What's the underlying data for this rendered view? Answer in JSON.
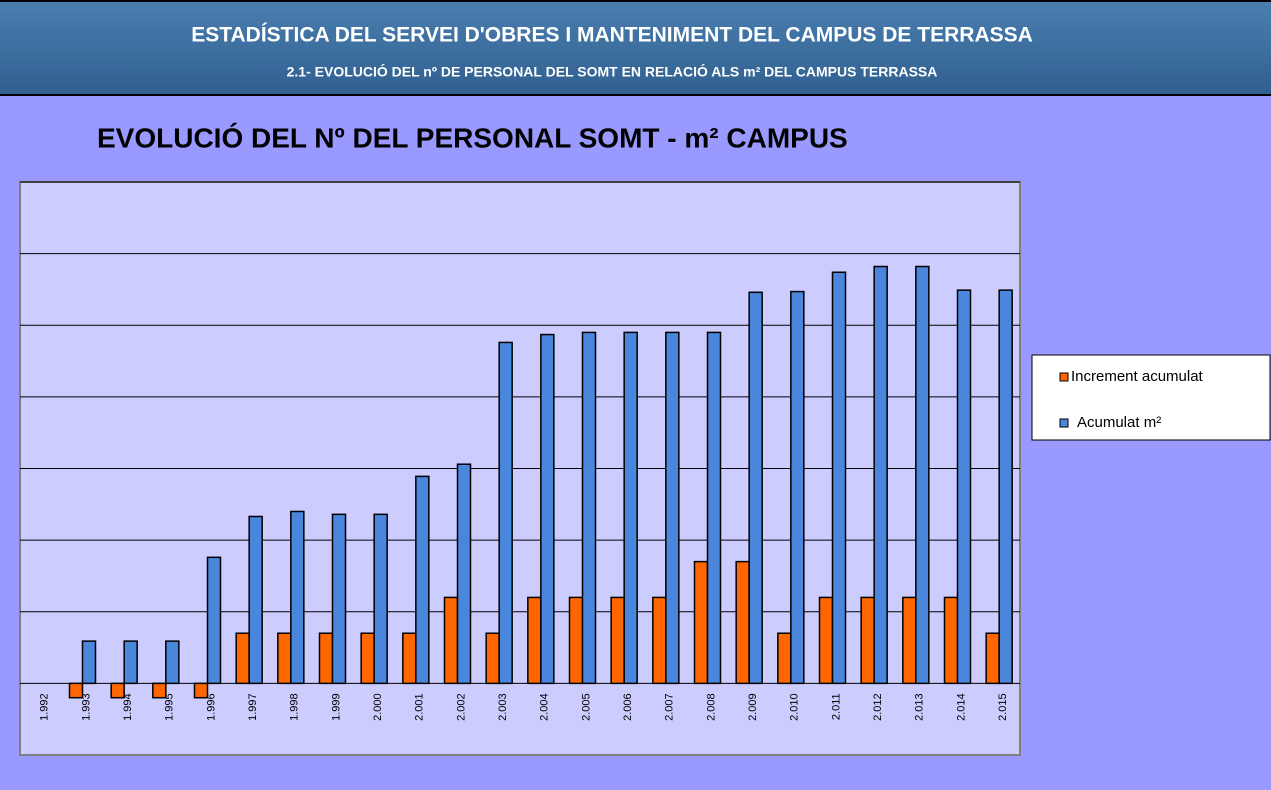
{
  "header": {
    "title": "ESTADÍSTICA DEL SERVEI D'OBRES I MANTENIMENT DEL CAMPUS DE TERRASSA",
    "subtitle": "2.1- EVOLUCIÓ  DEL nº DE PERSONAL DEL SOMT EN RELACIÓ ALS m² DEL CAMPUS TERRASSA"
  },
  "chart_data": {
    "type": "bar",
    "title": "EVOLUCIÓ DEL Nº DEL PERSONAL SOMT - m² CAMPUS",
    "categories": [
      "1.992",
      "1.993",
      "1.994",
      "1.995",
      "1.996",
      "1.997",
      "1.998",
      "1.999",
      "2.000",
      "2.001",
      "2.002",
      "2.003",
      "2.004",
      "2.005",
      "2.006",
      "2.007",
      "2.008",
      "2.009",
      "2.010",
      "2.011",
      "2.012",
      "2.013",
      "2.014",
      "2.015"
    ],
    "series": [
      {
        "name": "Increment  acumulat",
        "color": "#ff6600",
        "values": [
          0,
          -0.2,
          -0.2,
          -0.2,
          -0.2,
          0.7,
          0.7,
          0.7,
          0.7,
          0.7,
          1.2,
          0.7,
          1.2,
          1.2,
          1.2,
          1.2,
          1.7,
          1.7,
          0.7,
          1.2,
          1.2,
          1.2,
          1.2,
          0.7
        ]
      },
      {
        "name": "Acumulat m²",
        "color": "#4a86dc",
        "values": [
          0,
          0.59,
          0.59,
          0.59,
          1.76,
          2.33,
          2.4,
          2.36,
          2.36,
          2.89,
          3.06,
          4.76,
          4.87,
          4.9,
          4.9,
          4.9,
          4.9,
          5.46,
          5.47,
          5.74,
          5.82,
          5.82,
          5.49,
          5.49
        ]
      }
    ],
    "ylim": [
      -1,
      7
    ],
    "yticks": [
      0,
      1,
      2,
      3,
      4,
      5,
      6,
      7
    ],
    "grid": true,
    "legend": "right"
  }
}
